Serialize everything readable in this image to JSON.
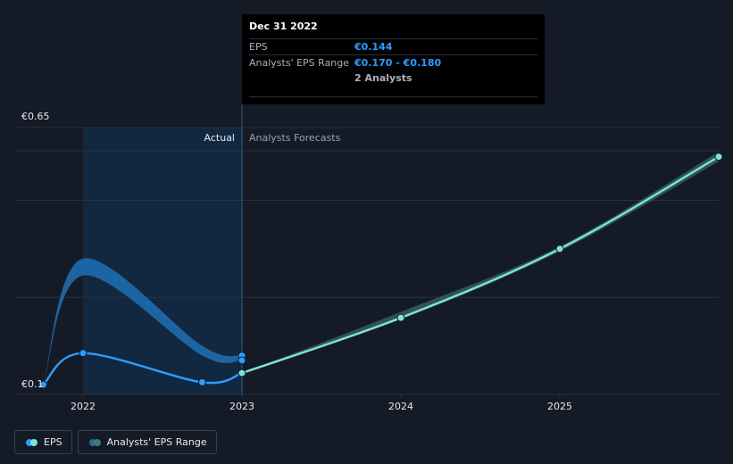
{
  "tooltip": {
    "date": "Dec 31 2022",
    "rows": [
      {
        "label": "EPS",
        "value": "€0.144"
      },
      {
        "label": "Analysts' EPS Range",
        "value": "€0.170 - €0.180"
      },
      {
        "label": "",
        "value": "2 Analysts"
      }
    ]
  },
  "legend": [
    {
      "label": "EPS",
      "colors": [
        "#2e9cff",
        "#7fe3d9"
      ]
    },
    {
      "label": "Analysts' EPS Range",
      "colors": [
        "#2a6f8f",
        "#3f7a7a"
      ]
    }
  ],
  "colors": {
    "background": "#151b26",
    "actual_shade": "#112a45",
    "eps_line": "#2e9cff",
    "forecast_line": "#7fe3d9",
    "range_band_actual": "#1e6bb0",
    "range_band_forecast": "#3a6b6e",
    "grid": "#2b313c",
    "axis_text": "#e6e9ef",
    "muted_text": "#9aa1ad"
  },
  "chart_data": {
    "type": "line",
    "y_tick_labels": [
      "€0.65",
      "€0.1"
    ],
    "ylim": [
      0.1,
      0.65
    ],
    "x_ticks": [
      2022,
      2023,
      2024,
      2025
    ],
    "region_labels": {
      "actual": "Actual",
      "forecast": "Analysts Forecasts"
    },
    "series": [
      {
        "name": "EPS",
        "role": "actual",
        "points": [
          [
            2021.75,
            0.12
          ],
          [
            2022.0,
            0.185
          ],
          [
            2022.75,
            0.125
          ],
          [
            2023.0,
            0.144
          ]
        ]
      },
      {
        "name": "EPS",
        "role": "forecast",
        "points": [
          [
            2023.0,
            0.144
          ],
          [
            2024.0,
            0.258
          ],
          [
            2025.0,
            0.4
          ],
          [
            2026.0,
            0.59
          ]
        ]
      },
      {
        "name": "Analysts' EPS Range",
        "role": "actual_range",
        "upper": [
          [
            2021.75,
            0.12
          ],
          [
            2022.0,
            0.38
          ],
          [
            2022.75,
            0.2
          ],
          [
            2023.0,
            0.18
          ]
        ],
        "lower": [
          [
            2021.75,
            0.12
          ],
          [
            2022.0,
            0.345
          ],
          [
            2022.75,
            0.18
          ],
          [
            2023.0,
            0.17
          ]
        ]
      },
      {
        "name": "Analysts' EPS Range",
        "role": "forecast_range",
        "upper": [
          [
            2023.0,
            0.144
          ],
          [
            2024.0,
            0.27
          ],
          [
            2025.0,
            0.405
          ],
          [
            2026.0,
            0.6
          ]
        ],
        "lower": [
          [
            2023.0,
            0.144
          ],
          [
            2024.0,
            0.255
          ],
          [
            2025.0,
            0.395
          ],
          [
            2026.0,
            0.58
          ]
        ]
      }
    ],
    "markers": {
      "actual": [
        [
          2021.75,
          0.12
        ],
        [
          2022.0,
          0.185
        ],
        [
          2022.75,
          0.125
        ],
        [
          2023.0,
          0.18
        ],
        [
          2023.0,
          0.17
        ]
      ],
      "forecast": [
        [
          2023.0,
          0.144
        ],
        [
          2024.0,
          0.258
        ],
        [
          2025.0,
          0.4
        ],
        [
          2026.0,
          0.59
        ]
      ]
    },
    "grid": true
  }
}
